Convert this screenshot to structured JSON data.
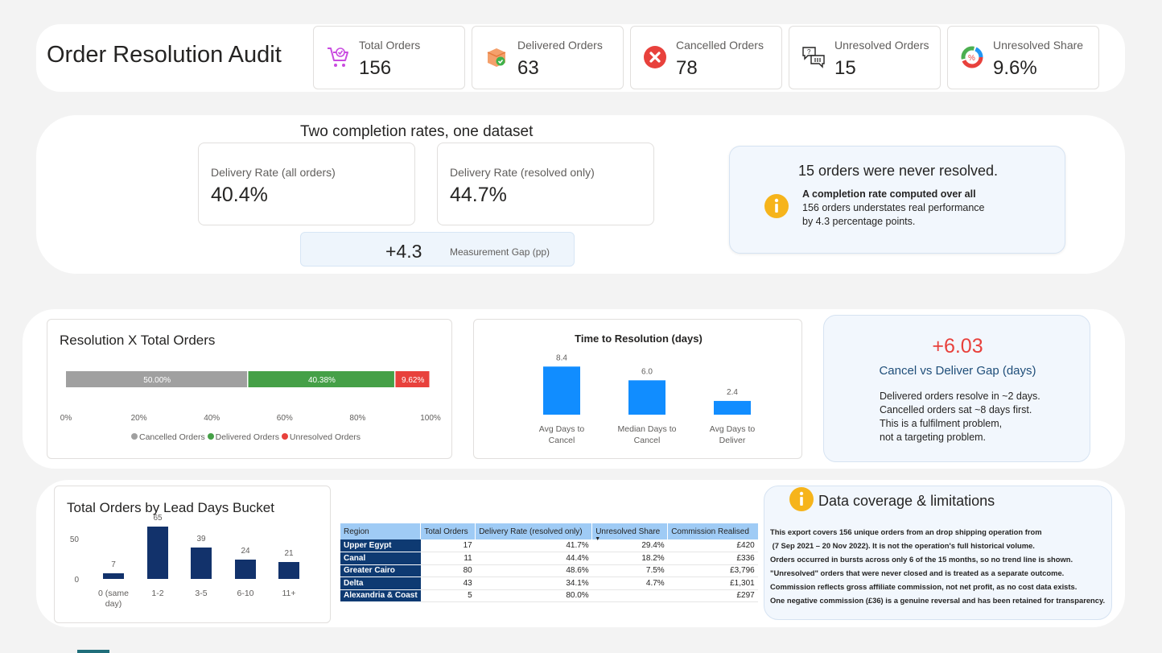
{
  "header": {
    "title": "Order Resolution Audit"
  },
  "kpis": [
    {
      "label": "Total Orders",
      "value": "156",
      "icon": "shopping-cart-icon"
    },
    {
      "label": "Delivered Orders",
      "value": "63",
      "icon": "package-check-icon"
    },
    {
      "label": "Cancelled Orders",
      "value": "78",
      "icon": "cancel-x-icon"
    },
    {
      "label": "Unresolved Orders",
      "value": "15",
      "icon": "question-chat-icon"
    },
    {
      "label": "Unresolved Share",
      "value": "9.6%",
      "icon": "percent-donut-icon"
    }
  ],
  "rates": {
    "title": "Two completion rates, one dataset",
    "all": {
      "label": "Delivery Rate (all orders)",
      "value": "40.4%"
    },
    "resolved": {
      "label": "Delivery Rate (resolved only)",
      "value": "44.7%"
    },
    "gap": {
      "value": "+4.3",
      "label": "Measurement Gap (pp)"
    }
  },
  "callout": {
    "title": "15 orders were never resolved.",
    "bold": "A completion rate computed over all",
    "line2": "156 orders understates real performance",
    "line3": "by 4.3 percentage points."
  },
  "resolution_chart": {
    "title": "Resolution X Total Orders",
    "legend": [
      "Cancelled Orders",
      "Delivered Orders",
      "Unresolved Orders"
    ],
    "ticks": [
      "0%",
      "20%",
      "40%",
      "60%",
      "80%",
      "100%"
    ],
    "labels": [
      "50.00%",
      "40.38%",
      "9.62%"
    ]
  },
  "time_chart": {
    "title": "Time to Resolution (days)",
    "categories": [
      "Avg Days to Cancel",
      "Median Days to Cancel",
      "Avg Days to Deliver"
    ],
    "cat_lines": [
      [
        "Avg Days to",
        "Cancel"
      ],
      [
        "Median Days to",
        "Cancel"
      ],
      [
        "Avg Days to",
        "Deliver"
      ]
    ],
    "values": [
      "8.4",
      "6.0",
      "2.4"
    ]
  },
  "gap_card": {
    "value": "+6.03",
    "label": "Cancel vs Deliver Gap (days)",
    "lines": [
      "Delivered orders resolve in ~2 days.",
      "Cancelled orders sat ~8 days first.",
      "This is a fulfilment problem,",
      "not a targeting problem."
    ]
  },
  "lead_chart": {
    "title": "Total Orders by Lead Days Bucket",
    "categories": [
      "0 (same day)",
      "1-2",
      "3-5",
      "6-10",
      "11+"
    ],
    "cat_lines": [
      [
        "0 (same",
        "day)"
      ],
      [
        "1-2"
      ],
      [
        "3-5"
      ],
      [
        "6-10"
      ],
      [
        "11+"
      ]
    ],
    "values": [
      "7",
      "65",
      "39",
      "24",
      "21"
    ],
    "yticks": [
      "50",
      "0"
    ]
  },
  "table": {
    "headers": [
      "Region",
      "Total Orders",
      "Delivery Rate (resolved only)",
      "Unresolved Share",
      "Commission Realised"
    ],
    "rows": [
      [
        "Upper Egypt",
        "17",
        "41.7%",
        "29.4%",
        "£420"
      ],
      [
        "Canal",
        "11",
        "44.4%",
        "18.2%",
        "£336"
      ],
      [
        "Greater Cairo",
        "80",
        "48.6%",
        "7.5%",
        "£3,796"
      ],
      [
        "Delta",
        "43",
        "34.1%",
        "4.7%",
        "£1,301"
      ],
      [
        "Alexandria & Coast",
        "5",
        "80.0%",
        "",
        "£297"
      ]
    ]
  },
  "coverage": {
    "title": "Data coverage & limitations",
    "lines": [
      "This export covers 156 unique orders from an drop shipping operation from",
      " (7 Sep 2021 – 20 Nov 2022). It is not the operation's full historical volume.",
      "Orders occurred in bursts across only 6 of the 15 months, so no trend line is shown.",
      "\"Unresolved\" orders that were never closed and is treated as a separate outcome.",
      "Commission reflects gross affiliate commission, not net profit, as no cost data exists.",
      "One negative commission (£36) is a genuine reversal and has been retained for transparency."
    ]
  },
  "chart_data": [
    {
      "type": "bar",
      "orientation": "horizontal-stacked-100",
      "title": "Resolution X Total Orders",
      "series": [
        {
          "name": "Cancelled Orders",
          "values": [
            50.0
          ]
        },
        {
          "name": "Delivered Orders",
          "values": [
            40.38
          ]
        },
        {
          "name": "Unresolved Orders",
          "values": [
            9.62
          ]
        }
      ],
      "xlim": [
        0,
        100
      ],
      "colors": [
        "#a0a0a0",
        "#45a047",
        "#e8413c"
      ],
      "legend": "bottom"
    },
    {
      "type": "bar",
      "title": "Time to Resolution (days)",
      "categories": [
        "Avg Days to Cancel",
        "Median Days to Cancel",
        "Avg Days to Deliver"
      ],
      "values": [
        8.4,
        6.0,
        2.4
      ],
      "ylim": [
        0,
        9
      ],
      "color": "#118dff"
    },
    {
      "type": "bar",
      "title": "Total Orders by Lead Days Bucket",
      "categories": [
        "0 (same day)",
        "1-2",
        "3-5",
        "6-10",
        "11+"
      ],
      "values": [
        7,
        65,
        39,
        24,
        21
      ],
      "ylim": [
        0,
        70
      ],
      "color": "#12326b"
    }
  ]
}
